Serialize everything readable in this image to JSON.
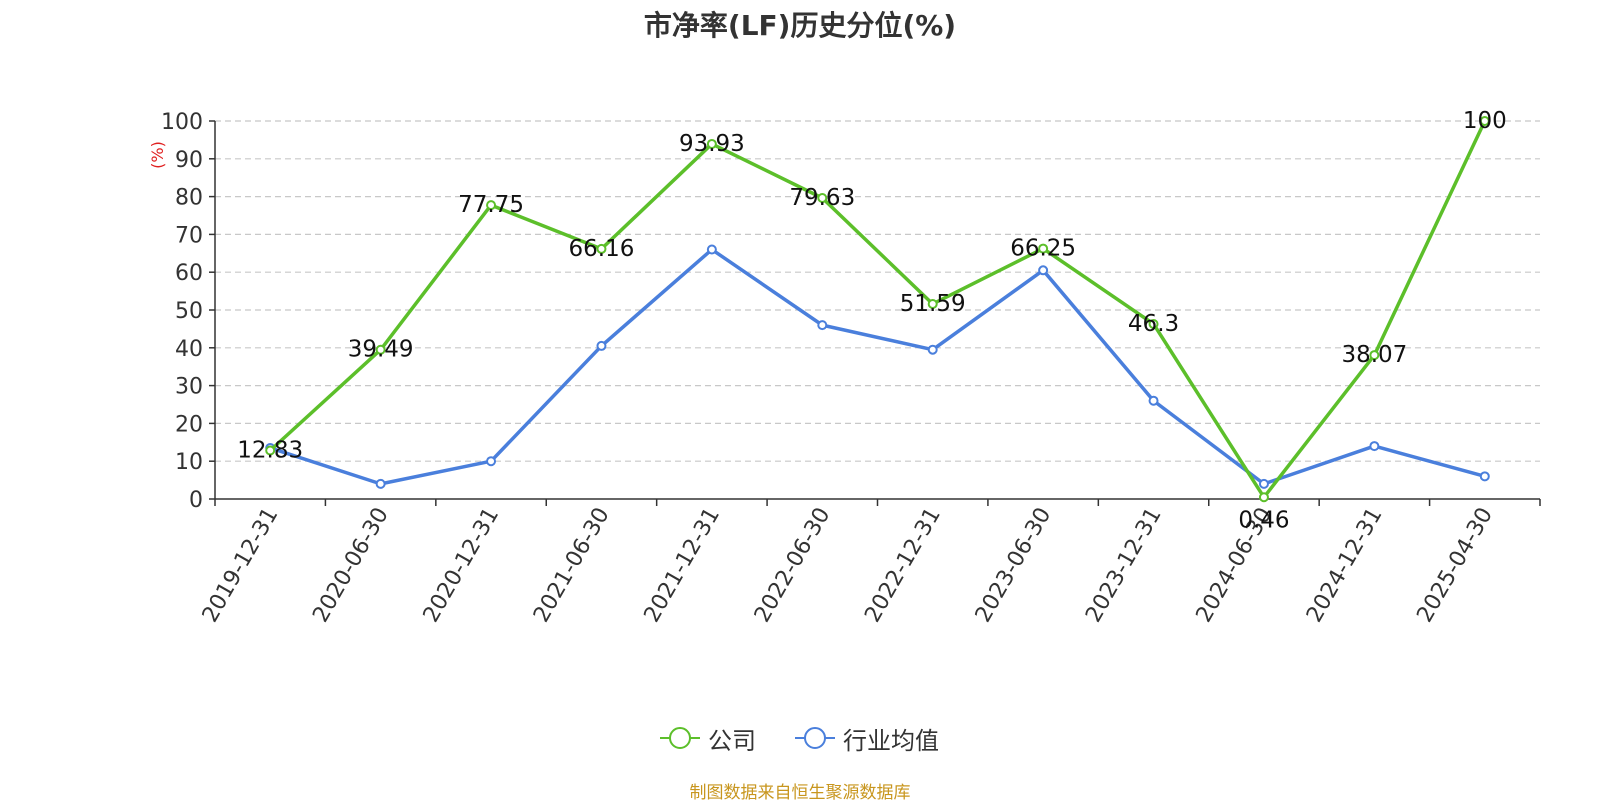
{
  "chart_data": {
    "type": "line",
    "title": "市净率(LF)历史分位(%)",
    "ylabel": "(%)",
    "xlabel": "",
    "ylim": [
      0,
      100
    ],
    "yticks": [
      0,
      10,
      20,
      30,
      40,
      50,
      60,
      70,
      80,
      90,
      100
    ],
    "categories": [
      "2019-12-31",
      "2020-06-30",
      "2020-12-31",
      "2021-06-30",
      "2021-12-31",
      "2022-06-30",
      "2022-12-31",
      "2023-06-30",
      "2023-12-31",
      "2024-06-30",
      "2024-12-31",
      "2025-04-30"
    ],
    "grid": true,
    "legend_position": "bottom-center",
    "series": [
      {
        "name": "公司",
        "color": "#5cbf2a",
        "values": [
          12.83,
          39.49,
          77.75,
          66.16,
          93.93,
          79.63,
          51.59,
          66.25,
          46.3,
          0.46,
          38.07,
          100
        ],
        "data_labels": [
          "12.83",
          "39.49",
          "77.75",
          "66.16",
          "93.93",
          "79.63",
          "51.59",
          "66.25",
          "46.3",
          "0.46",
          "38.07",
          "100"
        ]
      },
      {
        "name": "行业均值",
        "color": "#4a7fdc",
        "values": [
          13.5,
          4.0,
          10.0,
          40.5,
          66.0,
          46.0,
          39.5,
          60.5,
          26.0,
          4.0,
          14.0,
          6.0
        ]
      }
    ]
  },
  "footer": {
    "source": "制图数据来自恒生聚源数据库"
  }
}
